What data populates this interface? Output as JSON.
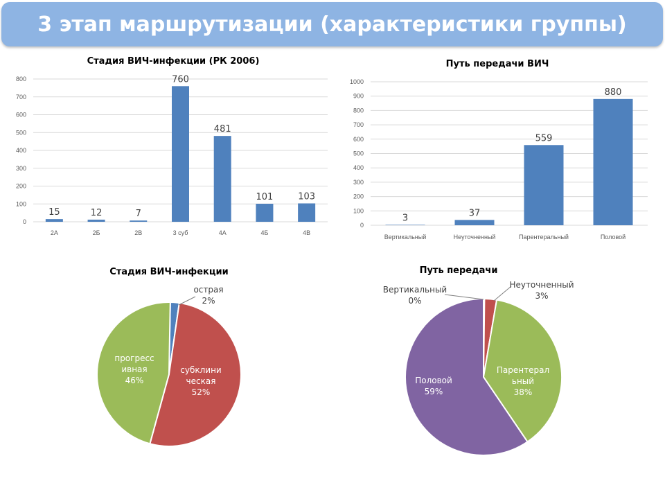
{
  "header": {
    "title": "3 этап маршрутизации (характеристики группы)"
  },
  "colors": {
    "header_bg": "#8eb4e3",
    "bar": "#4f81bd",
    "pie_blue": "#4f81bd",
    "pie_red": "#c0504d",
    "pie_green": "#9bbb59",
    "pie_purple": "#8064a2"
  },
  "chart_data": [
    {
      "type": "bar",
      "title": "Стадия ВИЧ-инфекции (РК 2006)",
      "categories": [
        "2А",
        "2Б",
        "2В",
        "3 суб",
        "4А",
        "4Б",
        "4В"
      ],
      "values": [
        15,
        12,
        7,
        760,
        481,
        101,
        103
      ],
      "ylim": [
        0,
        800
      ],
      "yticks": [
        "0",
        "100",
        "200",
        "300",
        "400",
        "500",
        "600",
        "700",
        "800"
      ],
      "grid": true
    },
    {
      "type": "bar",
      "title": "Путь передачи ВИЧ",
      "categories": [
        "Вертикальный",
        "Неуточненный",
        "Парентеральный",
        "Половой"
      ],
      "values": [
        3,
        37,
        559,
        880
      ],
      "ylim": [
        0,
        1000
      ],
      "yticks": [
        "0",
        "100",
        "200",
        "300",
        "400",
        "500",
        "600",
        "700",
        "800",
        "900",
        "1000"
      ],
      "grid": true
    },
    {
      "type": "pie",
      "title": "Стадия ВИЧ-инфекции",
      "slices": [
        {
          "label_lines": [
            "острая",
            "2%"
          ],
          "value": 2,
          "color": "#4f81bd"
        },
        {
          "label_lines": [
            "субклини",
            "ческая",
            "52%"
          ],
          "value": 52,
          "color": "#c0504d"
        },
        {
          "label_lines": [
            "прогресс",
            "ивная",
            "46%"
          ],
          "value": 46,
          "color": "#9bbb59"
        }
      ]
    },
    {
      "type": "pie",
      "title": "Путь передачи",
      "slices": [
        {
          "label_lines": [
            "Вертикальный",
            "0%"
          ],
          "value": 0.2,
          "color": "#4f81bd"
        },
        {
          "label_lines": [
            "Неуточненный",
            "3%"
          ],
          "value": 2.5,
          "color": "#c0504d"
        },
        {
          "label_lines": [
            "Парентерал",
            "ьный",
            "38%"
          ],
          "value": 37.8,
          "color": "#9bbb59"
        },
        {
          "label_lines": [
            "Половой",
            "59%"
          ],
          "value": 59.5,
          "color": "#8064a2"
        }
      ]
    }
  ]
}
